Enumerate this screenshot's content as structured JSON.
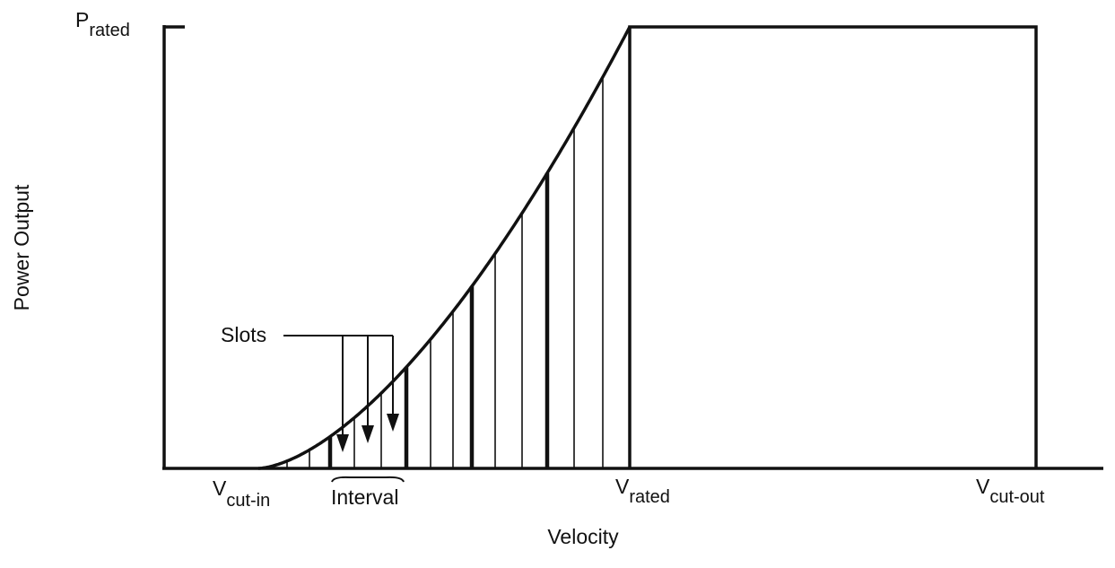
{
  "diagram": {
    "y_axis_label": "Power Output",
    "x_axis_label": "Velocity",
    "p_rated": {
      "main": "P",
      "sub": "rated"
    },
    "v_cut_in": {
      "main": "V",
      "sub": "cut-in"
    },
    "v_rated": {
      "main": "V",
      "sub": "rated"
    },
    "v_cut_out": {
      "main": "V",
      "sub": "cut-out"
    },
    "slots": "Slots",
    "interval": "Interval"
  }
}
